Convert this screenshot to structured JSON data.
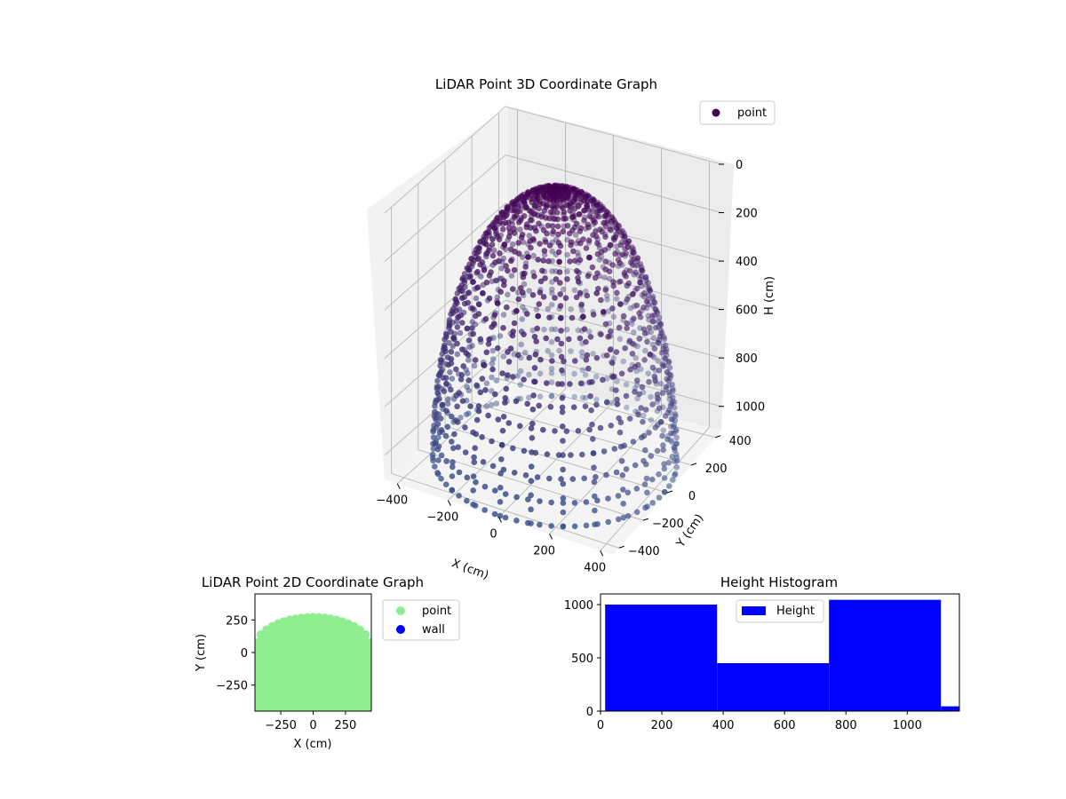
{
  "chart_data": [
    {
      "type": "scatter",
      "projection": "3d",
      "title": "LiDAR Point 3D Coordinate Graph",
      "xlabel": "X (cm)",
      "ylabel": "Y (cm)",
      "zlabel": "H (cm)",
      "xlim": [
        -450,
        450
      ],
      "ylim": [
        -450,
        450
      ],
      "zlim": [
        1100,
        0
      ],
      "x_ticks": [
        "-400",
        "-200",
        "0",
        "200",
        "400"
      ],
      "y_ticks": [
        "-400",
        "-200",
        "0",
        "200",
        "400"
      ],
      "z_ticks": [
        "0",
        "200",
        "400",
        "600",
        "800",
        "1000"
      ],
      "z_inverted": true,
      "grid": true,
      "legend": {
        "position": "upper-right",
        "entries": [
          {
            "label": "point",
            "color": "#440154"
          }
        ]
      },
      "colormap": "viridis (depth-shaded, purple at top to blue at bottom)",
      "series": [
        {
          "name": "point",
          "shape": "hemispherical dome of points",
          "center": [
            0,
            0
          ],
          "radius": 440,
          "apex_height": 0,
          "base_height": 1100,
          "color_top": "#440154",
          "color_bottom": "#3b528b"
        }
      ]
    },
    {
      "type": "scatter",
      "title": "LiDAR Point 2D Coordinate Graph",
      "xlabel": "X (cm)",
      "ylabel": "Y (cm)",
      "xlim": [
        -450,
        450
      ],
      "ylim": [
        -450,
        450
      ],
      "x_ticks": [
        "−250",
        "0",
        "250"
      ],
      "y_ticks": [
        "−250",
        "0",
        "250"
      ],
      "legend": {
        "position": "outside-right",
        "entries": [
          {
            "label": "point",
            "color": "#90ee90"
          },
          {
            "label": "wall",
            "color": "#0000ff"
          }
        ]
      },
      "series": [
        {
          "name": "point",
          "color": "#90ee90",
          "region": "filled area below upper arc",
          "arc_peak_y": 270,
          "x_range": [
            -450,
            450
          ]
        },
        {
          "name": "wall",
          "color": "#0000ff",
          "points": []
        }
      ]
    },
    {
      "type": "bar",
      "subtype": "histogram",
      "title": "Height Histogram",
      "xlim": [
        0,
        1170
      ],
      "ylim": [
        0,
        1100
      ],
      "x_ticks": [
        "0",
        "200",
        "400",
        "600",
        "800",
        "1000"
      ],
      "y_ticks": [
        "0",
        "500",
        "1000"
      ],
      "legend": {
        "position": "upper-center",
        "entries": [
          {
            "label": "Height",
            "color": "#0000ff"
          }
        ]
      },
      "bar_color": "#0000ff",
      "bins": [
        {
          "start": 15,
          "end": 380,
          "count": 1000
        },
        {
          "start": 380,
          "end": 745,
          "count": 450
        },
        {
          "start": 745,
          "end": 1110,
          "count": 1045
        },
        {
          "start": 1110,
          "end": 1170,
          "count": 45
        }
      ]
    }
  ]
}
